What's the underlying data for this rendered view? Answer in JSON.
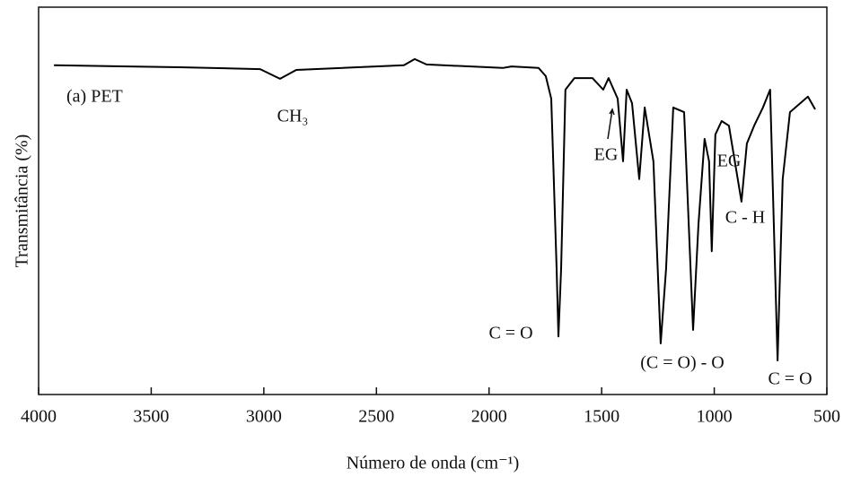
{
  "chart_data": {
    "type": "line",
    "xlabel": "Número de onda (cm⁻¹)",
    "ylabel": "Transmitância (%)",
    "xlim": [
      4000,
      500
    ],
    "xticks": [
      4000,
      3500,
      3000,
      2500,
      2000,
      1500,
      1000,
      500
    ],
    "ylim": [
      0,
      100
    ],
    "series": [
      {
        "name": "(a) PET",
        "color": "#000000",
        "x": [
          3932,
          3374,
          3016,
          2928,
          2856,
          2378,
          2330,
          2278,
          1939,
          1900,
          1780,
          1748,
          1724,
          1700,
          1692,
          1680,
          1661,
          1621,
          1541,
          1493,
          1469,
          1429,
          1405,
          1389,
          1365,
          1333,
          1309,
          1270,
          1238,
          1214,
          1182,
          1134,
          1094,
          1070,
          1043,
          1023,
          1011,
          995,
          967,
          935,
          879,
          855,
          823,
          784,
          752,
          719,
          696,
          664,
          584,
          552
        ],
        "values": [
          85,
          84.5,
          84,
          81.5,
          83.8,
          85,
          86.6,
          85.2,
          84.3,
          84.7,
          84.3,
          82.2,
          76.4,
          32.4,
          15,
          32.4,
          78.7,
          81.7,
          81.7,
          78.7,
          81.7,
          76.4,
          60.2,
          78.7,
          75.2,
          55.6,
          74.1,
          60.2,
          13.2,
          32.4,
          74.1,
          72.9,
          16.7,
          44,
          66,
          60.2,
          37,
          67.1,
          70.6,
          69.4,
          49.8,
          64.8,
          69.4,
          74.1,
          78.7,
          8.8,
          55.6,
          72.9,
          76.9,
          73.6
        ]
      }
    ],
    "annotations": [
      "CH₃",
      "EG",
      "EG",
      "C - H",
      "C = O",
      "(C = O) - O",
      "C = O"
    ]
  }
}
